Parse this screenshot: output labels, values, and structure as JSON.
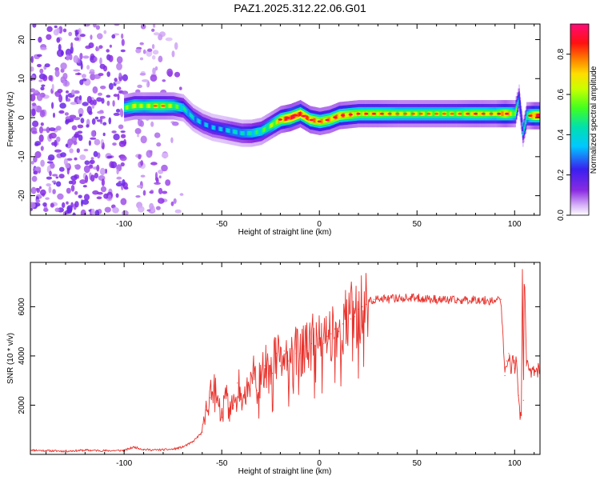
{
  "title": "PAZ1.2025.312.22.06.G01",
  "chart_data": [
    {
      "type": "heatmap",
      "name": "spectrogram",
      "xlabel": "Height of straight line (km)",
      "ylabel": "Frequency (Hz)",
      "xlim": [
        -148,
        113
      ],
      "ylim": [
        -25,
        24
      ],
      "x_ticks": [
        -100,
        -50,
        0,
        50,
        100
      ],
      "y_ticks": [
        -20,
        -10,
        0,
        10,
        20
      ],
      "x_tick_labels": [
        "-100",
        "-50",
        "0",
        "50",
        "100"
      ],
      "y_tick_labels": [
        "-20",
        "-10",
        "0",
        "10",
        "20"
      ],
      "colorbar": {
        "label": "Normalized spectral amplitude",
        "range": [
          0,
          0.95
        ],
        "ticks": [
          0.0,
          0.2,
          0.4,
          0.6,
          0.8
        ],
        "tick_labels": [
          "0.0",
          "0.2",
          "0.4",
          "0.6",
          "0.8"
        ],
        "colormap": "rainbow (white → violet → blue → cyan → green → yellow → red → magenta)"
      },
      "noise_region_x": [
        -148,
        -70
      ],
      "tone_track": {
        "x": [
          -100,
          -95,
          -90,
          -85,
          -80,
          -75,
          -70,
          -65,
          -60,
          -55,
          -50,
          -45,
          -40,
          -35,
          -30,
          -25,
          -20,
          -15,
          -10,
          -5,
          0,
          5,
          10,
          20,
          30,
          40,
          50,
          60,
          70,
          80,
          90,
          95,
          100,
          102,
          104,
          106,
          110,
          113
        ],
        "freq_hz": [
          2.5,
          3,
          3,
          3,
          3,
          3,
          2.5,
          0,
          -1.5,
          -2.5,
          -3,
          -3.5,
          -4,
          -4,
          -3.5,
          -2,
          -0.5,
          0,
          1,
          -0.5,
          -1,
          -0.5,
          0.5,
          1,
          1,
          1,
          1,
          1,
          1,
          1,
          1,
          1,
          1,
          5,
          -4,
          0.5,
          0.5,
          0.5
        ],
        "amplitude": [
          0.5,
          0.6,
          0.55,
          0.6,
          0.6,
          0.55,
          0.4,
          0.35,
          0.3,
          0.3,
          0.3,
          0.35,
          0.35,
          0.4,
          0.45,
          0.55,
          0.7,
          0.85,
          0.8,
          0.75,
          0.7,
          0.7,
          0.75,
          0.65,
          0.65,
          0.6,
          0.6,
          0.6,
          0.6,
          0.65,
          0.6,
          0.75,
          0.55,
          0.3,
          0.3,
          0.5,
          0.8,
          0.8
        ]
      }
    },
    {
      "type": "line",
      "name": "snr",
      "xlabel": "Height of straight line (km)",
      "ylabel": "SNR (10 * v/v)",
      "xlim": [
        -148,
        113
      ],
      "ylim": [
        0,
        7800
      ],
      "x_ticks": [
        -100,
        -50,
        0,
        50,
        100
      ],
      "y_ticks": [
        2000,
        4000,
        6000
      ],
      "x_tick_labels": [
        "-100",
        "-50",
        "0",
        "50",
        "100"
      ],
      "y_tick_labels": [
        "2000",
        "4000",
        "6000"
      ],
      "color": "#e8312b",
      "series": [
        {
          "name": "SNR",
          "x": [
            -148,
            -140,
            -130,
            -120,
            -110,
            -100,
            -95,
            -90,
            -85,
            -80,
            -75,
            -70,
            -65,
            -60,
            -58,
            -56,
            -54,
            -52,
            -50,
            -48,
            -46,
            -44,
            -42,
            -40,
            -38,
            -36,
            -34,
            -32,
            -30,
            -28,
            -26,
            -24,
            -22,
            -20,
            -18,
            -16,
            -14,
            -12,
            -10,
            -8,
            -6,
            -4,
            -2,
            0,
            2,
            4,
            6,
            8,
            10,
            12,
            14,
            16,
            18,
            20,
            22,
            24,
            26,
            28,
            30,
            35,
            40,
            50,
            60,
            70,
            80,
            85,
            90,
            93,
            95,
            96,
            97,
            98,
            99,
            100,
            101,
            102,
            103,
            103.5,
            104,
            104.5,
            105,
            106,
            108,
            110,
            113
          ],
          "y": [
            180,
            150,
            130,
            170,
            150,
            160,
            300,
            200,
            180,
            190,
            210,
            300,
            500,
            900,
            1800,
            2300,
            2800,
            2200,
            1500,
            2600,
            1800,
            2000,
            2900,
            2400,
            2300,
            2800,
            3300,
            2600,
            3100,
            3600,
            3300,
            3300,
            4100,
            3600,
            4200,
            3800,
            4300,
            4100,
            4100,
            4400,
            4200,
            4500,
            4400,
            4700,
            4500,
            4800,
            4900,
            5100,
            5000,
            5300,
            5400,
            5500,
            5600,
            5900,
            6000,
            6100,
            6200,
            6300,
            6300,
            6300,
            6350,
            6350,
            6300,
            6250,
            6300,
            6250,
            6250,
            6300,
            3200,
            3800,
            4100,
            3300,
            4000,
            3500,
            3800,
            2400,
            1500,
            1600,
            7800,
            2200,
            7800,
            3600,
            3400,
            3450,
            3400
          ]
        }
      ]
    }
  ]
}
